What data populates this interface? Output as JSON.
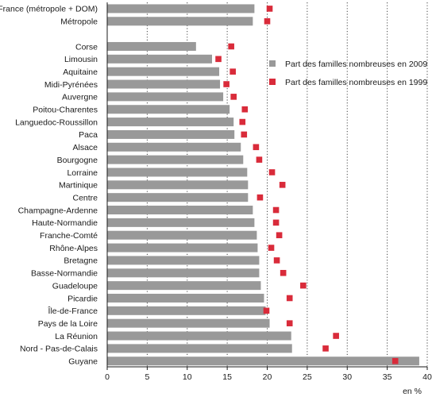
{
  "chart_data": {
    "type": "bar",
    "orientation": "horizontal",
    "categories": [
      "France (métropole + DOM)",
      "Métropole",
      "",
      "Corse",
      "Limousin",
      "Aquitaine",
      "Midi-Pyrénées",
      "Auvergne",
      "Poitou-Charentes",
      "Languedoc-Roussillon",
      "Paca",
      "Alsace",
      "Bourgogne",
      "Lorraine",
      "Martinique",
      "Centre",
      "Champagne-Ardenne",
      "Haute-Normandie",
      "Franche-Comté",
      "Rhône-Alpes",
      "Bretagne",
      "Basse-Normandie",
      "Guadeloupe",
      "Picardie",
      "Île-de-France",
      "Pays de la Loire",
      "La Réunion",
      "Nord - Pas-de-Calais",
      "Guyane"
    ],
    "series": [
      {
        "name": "Part des familles nombreuses en 2009",
        "kind": "bar",
        "color": "#999999",
        "values": [
          18.4,
          18.2,
          null,
          11.1,
          13.1,
          14.0,
          14.1,
          14.5,
          15.3,
          15.8,
          15.9,
          16.7,
          17.0,
          17.5,
          17.6,
          17.6,
          18.2,
          18.4,
          18.7,
          18.8,
          19.0,
          19.0,
          19.2,
          19.6,
          19.8,
          20.3,
          23.0,
          23.1,
          39.0
        ]
      },
      {
        "name": "Part des familles nombreuses en 1999",
        "kind": "marker",
        "color": "#d92b3a",
        "values": [
          20.3,
          20.0,
          null,
          15.5,
          13.9,
          15.7,
          14.9,
          15.8,
          17.2,
          16.9,
          17.1,
          18.6,
          19.0,
          20.6,
          21.9,
          19.1,
          21.1,
          21.1,
          21.5,
          20.5,
          21.2,
          22.0,
          24.5,
          22.8,
          19.9,
          22.8,
          28.6,
          27.3,
          36.0
        ]
      }
    ],
    "xticks": [
      "0",
      "5",
      "10",
      "15",
      "20",
      "25",
      "30",
      "35",
      "40"
    ],
    "xlim": [
      0,
      40
    ],
    "xunit": "en %",
    "grid": "vertical dotted",
    "legend": "right"
  }
}
